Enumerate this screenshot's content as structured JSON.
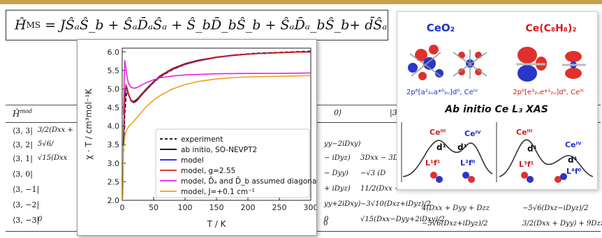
{
  "hamiltonian": {
    "lhs": "Ĥ",
    "lhs_sup": "MS",
    "rhs": "= JŜₐŜ_b + ŜₐD̄ₐŜₐ + Ŝ_bD̄_bŜ_b + ŜₐD̄ₐ_bŜ_b+ d̄Ŝₐ × Ŝ_l"
  },
  "matrix": {
    "header_left": "Ĥ",
    "header_left_sup": "mod",
    "header_mid": "0⟩",
    "header_right": "|3,",
    "rows": [
      {
        "label": "⟨3, 3|",
        "first": "3/2(Dxx +",
        "mid": "",
        "tail": ""
      },
      {
        "label": "⟨3, 2|",
        "first": "5√6/",
        "mid": "yy−2iDxy)",
        "tail": ""
      },
      {
        "label": "⟨3, 1|",
        "first": "√15(Dxx",
        "mid": "− iDyz)",
        "tail": "3Dxx − 3D"
      },
      {
        "label": "⟨3, 0|",
        "first": "",
        "mid": "− Dyy)",
        "tail": "−√3 (D"
      },
      {
        "label": "⟨3, −1|",
        "first": "",
        "mid": "+ iDyz)",
        "tail": "11/2(Dxx +"
      },
      {
        "label": "⟨3, −2|",
        "first": "",
        "mid": "yy+2iDxy)",
        "tail": "−3√10(Dxz+iDyz)/2"
      },
      {
        "label": "⟨3, −3|",
        "first": "0",
        "mid": "0",
        "tail": "√15(Dxx−Dyy+2iDxy)/2"
      }
    ],
    "col5": [
      "4(Dxx + Dyy + Dzz",
      "−5√6(Dxz+iDyz)/2"
    ],
    "col6": [
      "−5√6(Dxz−iDyz)/2",
      "3/2(Dxx + Dyy) + 9Dzz"
    ],
    "zeros": [
      "0",
      "0",
      "0"
    ]
  },
  "chart_data": {
    "type": "line",
    "xlabel": "T / K",
    "ylabel": "χ · T / cm³mol⁻¹K",
    "xlim": [
      0,
      300
    ],
    "ylim": [
      2.0,
      6.1
    ],
    "xticks": [
      "0",
      "50",
      "100",
      "150",
      "200",
      "250",
      "300"
    ],
    "yticks": [
      "2.0",
      "2.5",
      "3.0",
      "3.5",
      "4.0",
      "4.5",
      "5.0",
      "5.5",
      "6.0"
    ],
    "grid": false,
    "legend_position": "bottom-right",
    "series": [
      {
        "name": "experiment",
        "color": "#000000",
        "dash": true,
        "x": [
          2,
          4,
          6,
          8,
          10,
          14,
          18,
          22,
          26,
          30,
          40,
          50,
          60,
          80,
          100,
          120,
          150,
          180,
          210,
          240,
          270,
          300
        ],
        "y": [
          3.3,
          4.3,
          4.8,
          4.95,
          4.85,
          4.7,
          4.65,
          4.68,
          4.74,
          4.82,
          5.0,
          5.17,
          5.32,
          5.52,
          5.66,
          5.76,
          5.86,
          5.92,
          5.96,
          5.98,
          6.0,
          6.02
        ]
      },
      {
        "name": "ab initio, SO-NEVPT2",
        "color": "#000000",
        "dash": false,
        "x": [
          2,
          4,
          6,
          8,
          10,
          14,
          18,
          22,
          26,
          30,
          40,
          50,
          60,
          80,
          100,
          120,
          150,
          180,
          210,
          240,
          270,
          300
        ],
        "y": [
          3.5,
          4.7,
          5.05,
          5.0,
          4.85,
          4.7,
          4.66,
          4.7,
          4.76,
          4.85,
          5.03,
          5.2,
          5.35,
          5.55,
          5.68,
          5.77,
          5.86,
          5.91,
          5.95,
          5.97,
          5.99,
          6.0
        ]
      },
      {
        "name": "model",
        "color": "#1a1ad6",
        "dash": false,
        "x": [
          2,
          4,
          6,
          8,
          10,
          14,
          18,
          22,
          26,
          30,
          40,
          50,
          60,
          80,
          100,
          120,
          150,
          180,
          210,
          240,
          270,
          300
        ],
        "y": [
          3.6,
          4.8,
          5.08,
          5.0,
          4.85,
          4.68,
          4.63,
          4.66,
          4.73,
          4.82,
          5.0,
          5.18,
          5.33,
          5.53,
          5.66,
          5.75,
          5.85,
          5.91,
          5.95,
          5.97,
          5.99,
          6.0
        ]
      },
      {
        "name": "model, g=2.55",
        "color": "#e01b1b",
        "dash": false,
        "x": [
          2,
          4,
          6,
          8,
          10,
          14,
          18,
          22,
          26,
          30,
          40,
          50,
          60,
          80,
          100,
          120,
          150,
          180,
          210,
          240,
          270,
          300
        ],
        "y": [
          3.7,
          4.85,
          5.1,
          5.02,
          4.87,
          4.7,
          4.64,
          4.67,
          4.74,
          4.83,
          5.01,
          5.18,
          5.33,
          5.54,
          5.67,
          5.76,
          5.86,
          5.92,
          5.95,
          5.97,
          5.99,
          6.0
        ]
      },
      {
        "name": "model, D̄ₐ and D̄_b assumed diagonal",
        "color": "#e026e0",
        "dash": false,
        "x": [
          2,
          4,
          6,
          8,
          10,
          14,
          18,
          22,
          26,
          30,
          40,
          50,
          60,
          80,
          100,
          150,
          200,
          250,
          300
        ],
        "y": [
          4.3,
          5.78,
          5.55,
          5.3,
          5.15,
          5.05,
          5.02,
          5.03,
          5.06,
          5.1,
          5.18,
          5.25,
          5.3,
          5.35,
          5.38,
          5.41,
          5.42,
          5.42,
          5.43
        ]
      },
      {
        "name": "model, J=+0.1 cm⁻¹",
        "color": "#f0a018",
        "dash": false,
        "x": [
          1,
          2,
          4,
          6,
          8,
          10,
          14,
          18,
          22,
          26,
          30,
          40,
          50,
          60,
          80,
          100,
          120,
          150,
          180,
          210,
          240,
          270,
          300
        ],
        "y": [
          2.05,
          3.3,
          3.7,
          3.85,
          3.92,
          3.98,
          4.05,
          4.12,
          4.2,
          4.28,
          4.36,
          4.55,
          4.7,
          4.82,
          5.0,
          5.12,
          5.2,
          5.27,
          5.31,
          5.33,
          5.34,
          5.35,
          5.36
        ]
      }
    ]
  },
  "xas": {
    "ceo2": "CeO₂",
    "ce_cot": "Ce(C₈H₈)₂",
    "config_left": "2p⁶[a²₂ᵤa*⁰₂ᵤ]d⁰, Ceᴵⱽ",
    "config_right": "2p⁶[e³₂ᵤe*¹₂ᵤ]d⁰, Ceᴵᴵᴵ",
    "title": "Ab initio Ce L₃ XAS",
    "left_labels": {
      "ce3": "Ceᴵᴵᴵ",
      "ce4": "Ceᴵⱽ",
      "d1a": "d¹",
      "d1b": "d¹",
      "l1f1": "L¹f¹",
      "l2f0": "L²f⁰"
    },
    "right_labels": {
      "ce3": "Ceᴵᴵᴵ",
      "ce4": "Ceᴵⱽ",
      "d1a": "d¹",
      "d1b": "d¹",
      "l3f1": "L³f¹",
      "l4f0": "L⁴f⁰"
    },
    "colors": {
      "title_blue": "#1c2fd6",
      "config_red": "#d41c1c",
      "label_red": "#d41c1c",
      "label_blue": "#1c2fd6"
    }
  }
}
